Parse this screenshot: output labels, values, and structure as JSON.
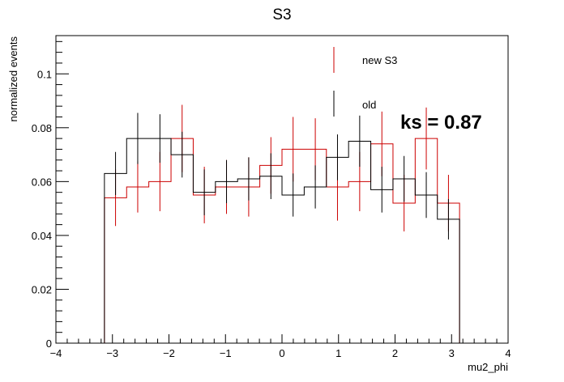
{
  "chart_data": {
    "type": "step",
    "title": "S3",
    "xlabel": "mu2_phi",
    "ylabel": "normalized events",
    "xlim": [
      -4,
      4
    ],
    "ylim": [
      0,
      0.1142
    ],
    "x_ticks": [
      "−4",
      "−3",
      "−2",
      "−1",
      "0",
      "1",
      "2",
      "3",
      "4"
    ],
    "y_ticks": [
      "0",
      "0.02",
      "0.04",
      "0.06",
      "0.08",
      "0.1"
    ],
    "x_tick_values": [
      -4,
      -3,
      -2,
      -1,
      0,
      1,
      2,
      3,
      4
    ],
    "y_tick_values": [
      0,
      0.02,
      0.04,
      0.06,
      0.08,
      0.1
    ],
    "bin_edges": [
      -3.1416,
      -2.7489,
      -2.3562,
      -1.9635,
      -1.5708,
      -1.1781,
      -0.7854,
      -0.3927,
      0.0,
      0.3927,
      0.7854,
      1.1781,
      1.5708,
      1.9635,
      2.3562,
      2.7489,
      3.1416
    ],
    "series": [
      {
        "name": "new S3",
        "color": "#cc0000",
        "values": [
          0.054,
          0.058,
          0.06,
          0.076,
          0.055,
          0.058,
          0.058,
          0.066,
          0.072,
          0.072,
          0.058,
          0.06,
          0.074,
          0.052,
          0.076,
          0.052
        ],
        "errors": [
          0.0105,
          0.0095,
          0.011,
          0.0125,
          0.0105,
          0.01,
          0.011,
          0.0105,
          0.012,
          0.0115,
          0.0125,
          0.011,
          0.012,
          0.0105,
          0.0115,
          0.0105
        ]
      },
      {
        "name": "old",
        "color": "#000000",
        "values": [
          0.063,
          0.076,
          0.076,
          0.07,
          0.056,
          0.06,
          0.061,
          0.062,
          0.055,
          0.058,
          0.069,
          0.075,
          0.057,
          0.061,
          0.055,
          0.046
        ],
        "errors": [
          0.008,
          0.0095,
          0.009,
          0.0085,
          0.0085,
          0.008,
          0.008,
          0.0085,
          0.008,
          0.008,
          0.0085,
          0.0095,
          0.0085,
          0.0085,
          0.0085,
          0.0075
        ]
      }
    ],
    "legend": {
      "position": "top-right",
      "entries": [
        "new S3",
        "old"
      ]
    },
    "annotation": "ks = 0.87",
    "grid": false
  }
}
